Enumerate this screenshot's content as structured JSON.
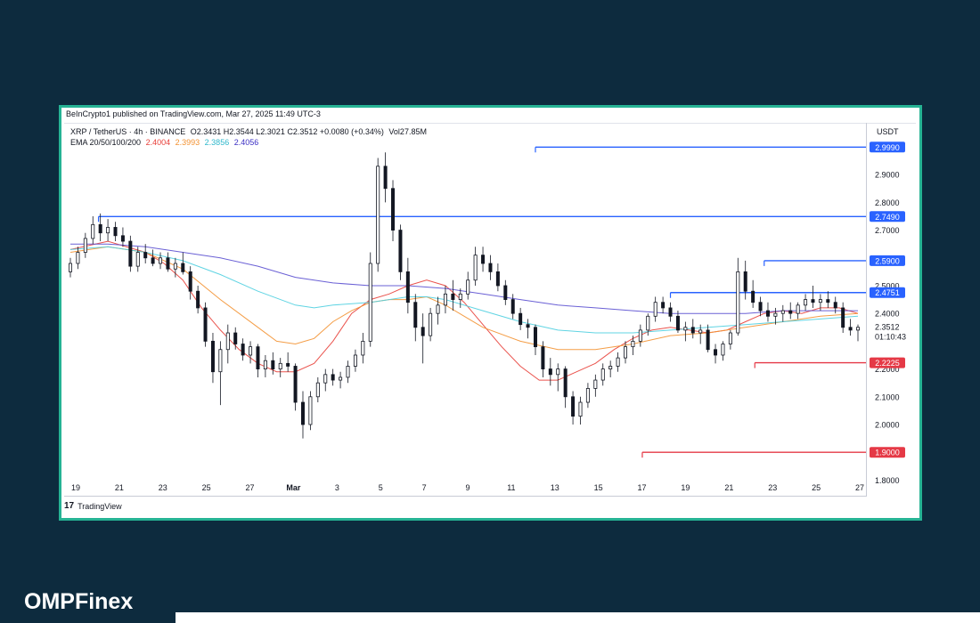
{
  "publisher": "BeInCrypto1 published on TradingView.com, Mar 27, 2025 11:49 UTC-3",
  "legend": {
    "symbol": "XRP / TetherUS · 4h · BINANCE",
    "ohlc": "O2.3431  H2.3544  L2.3021  C2.3512  +0.0080 (+0.34%)",
    "volume": "Vol27.85M",
    "ema_label": "EMA 20/50/100/200",
    "ema_values": [
      "2.4004",
      "2.3993",
      "2.3856",
      "2.4056"
    ]
  },
  "currency": "USDT",
  "footer": {
    "logo": "17",
    "label": "TradingView"
  },
  "brand": "OMPFinex",
  "colors": {
    "ema20": "#e8403a",
    "ema50": "#f39232",
    "ema100": "#4fcfe0",
    "ema200": "#5a4fd0",
    "resistance": "#2962ff",
    "support": "#e53946",
    "candle": "#131722",
    "frame": "#26b394"
  },
  "chart_data": {
    "type": "candlestick",
    "x_tick_labels": [
      "19",
      "21",
      "23",
      "25",
      "27",
      "Mar",
      "3",
      "5",
      "7",
      "9",
      "11",
      "13",
      "15",
      "17",
      "19",
      "21",
      "23",
      "25",
      "27"
    ],
    "y_tick_labels": [
      "2.9000",
      "2.8000",
      "2.7000",
      "2.5000",
      "2.4000",
      "2.2000",
      "2.1000",
      "2.0000",
      "1.8000"
    ],
    "ylim": [
      1.75,
      3.08
    ],
    "current_price": "2.3512",
    "countdown": "01:10:43",
    "resistance_levels": [
      {
        "value": 2.999,
        "label": "2.9990",
        "start_day": 24.8
      },
      {
        "value": 2.749,
        "label": "2.7490",
        "start_day": 1.5
      },
      {
        "value": 2.59,
        "label": "2.5900",
        "start_day": 37.0
      },
      {
        "value": 2.4751,
        "label": "2.4751",
        "start_day": 32.0
      }
    ],
    "support_levels": [
      {
        "value": 2.2225,
        "label": "2.2225",
        "start_day": 36.5
      },
      {
        "value": 1.9,
        "label": "1.9000",
        "start_day": 30.5
      }
    ],
    "series": [
      {
        "name": "EMA 20",
        "color": "#e8403a",
        "points": [
          [
            0,
            2.63
          ],
          [
            2,
            2.66
          ],
          [
            4,
            2.62
          ],
          [
            5,
            2.58
          ],
          [
            6,
            2.52
          ],
          [
            7,
            2.42
          ],
          [
            8,
            2.34
          ],
          [
            9,
            2.27
          ],
          [
            10,
            2.22
          ],
          [
            11,
            2.19
          ],
          [
            12,
            2.19
          ],
          [
            13,
            2.22
          ],
          [
            14,
            2.3
          ],
          [
            15,
            2.4
          ],
          [
            16,
            2.45
          ],
          [
            17,
            2.47
          ],
          [
            18,
            2.5
          ],
          [
            19,
            2.52
          ],
          [
            20,
            2.5
          ],
          [
            21,
            2.44
          ],
          [
            22,
            2.36
          ],
          [
            23,
            2.28
          ],
          [
            24,
            2.21
          ],
          [
            25,
            2.16
          ],
          [
            26,
            2.16
          ],
          [
            27,
            2.19
          ],
          [
            28,
            2.22
          ],
          [
            29,
            2.27
          ],
          [
            30,
            2.31
          ],
          [
            31,
            2.34
          ],
          [
            32,
            2.35
          ],
          [
            33,
            2.34
          ],
          [
            34,
            2.33
          ],
          [
            35,
            2.34
          ],
          [
            36,
            2.37
          ],
          [
            37,
            2.4
          ],
          [
            38,
            2.41
          ],
          [
            39,
            2.4
          ],
          [
            40,
            2.42
          ],
          [
            41,
            2.42
          ],
          [
            42,
            2.4
          ]
        ]
      },
      {
        "name": "EMA 50",
        "color": "#f39232",
        "points": [
          [
            0,
            2.62
          ],
          [
            2,
            2.64
          ],
          [
            4,
            2.62
          ],
          [
            6,
            2.56
          ],
          [
            8,
            2.45
          ],
          [
            10,
            2.35
          ],
          [
            11,
            2.3
          ],
          [
            12,
            2.29
          ],
          [
            13,
            2.31
          ],
          [
            14,
            2.37
          ],
          [
            15,
            2.41
          ],
          [
            16,
            2.44
          ],
          [
            17,
            2.45
          ],
          [
            18,
            2.45
          ],
          [
            19,
            2.46
          ],
          [
            20,
            2.43
          ],
          [
            21,
            2.39
          ],
          [
            22,
            2.35
          ],
          [
            24,
            2.3
          ],
          [
            26,
            2.27
          ],
          [
            28,
            2.27
          ],
          [
            30,
            2.29
          ],
          [
            32,
            2.32
          ],
          [
            34,
            2.33
          ],
          [
            36,
            2.35
          ],
          [
            38,
            2.37
          ],
          [
            40,
            2.39
          ],
          [
            42,
            2.4
          ]
        ]
      },
      {
        "name": "EMA 100",
        "color": "#4fcfe0",
        "points": [
          [
            0,
            2.63
          ],
          [
            2,
            2.64
          ],
          [
            4,
            2.62
          ],
          [
            6,
            2.59
          ],
          [
            8,
            2.54
          ],
          [
            10,
            2.48
          ],
          [
            12,
            2.43
          ],
          [
            13,
            2.42
          ],
          [
            14,
            2.43
          ],
          [
            16,
            2.44
          ],
          [
            18,
            2.46
          ],
          [
            19,
            2.46
          ],
          [
            20,
            2.45
          ],
          [
            22,
            2.41
          ],
          [
            24,
            2.37
          ],
          [
            26,
            2.34
          ],
          [
            28,
            2.33
          ],
          [
            30,
            2.33
          ],
          [
            32,
            2.34
          ],
          [
            34,
            2.35
          ],
          [
            36,
            2.36
          ],
          [
            38,
            2.37
          ],
          [
            40,
            2.38
          ],
          [
            42,
            2.39
          ]
        ]
      },
      {
        "name": "EMA 200",
        "color": "#5a4fd0",
        "points": [
          [
            0,
            2.65
          ],
          [
            2,
            2.65
          ],
          [
            4,
            2.64
          ],
          [
            6,
            2.62
          ],
          [
            8,
            2.6
          ],
          [
            10,
            2.57
          ],
          [
            12,
            2.53
          ],
          [
            14,
            2.51
          ],
          [
            16,
            2.5
          ],
          [
            18,
            2.5
          ],
          [
            20,
            2.49
          ],
          [
            22,
            2.47
          ],
          [
            24,
            2.45
          ],
          [
            26,
            2.43
          ],
          [
            28,
            2.42
          ],
          [
            30,
            2.41
          ],
          [
            32,
            2.4
          ],
          [
            34,
            2.4
          ],
          [
            36,
            2.4
          ],
          [
            38,
            2.41
          ],
          [
            40,
            2.41
          ],
          [
            42,
            2.41
          ]
        ]
      }
    ],
    "candles": [
      [
        0.0,
        2.55,
        2.6,
        2.53,
        2.58
      ],
      [
        0.4,
        2.58,
        2.64,
        2.56,
        2.62
      ],
      [
        0.8,
        2.62,
        2.69,
        2.6,
        2.67
      ],
      [
        1.2,
        2.67,
        2.75,
        2.65,
        2.72
      ],
      [
        1.6,
        2.72,
        2.76,
        2.66,
        2.69
      ],
      [
        2.0,
        2.69,
        2.74,
        2.66,
        2.71
      ],
      [
        2.4,
        2.71,
        2.73,
        2.66,
        2.68
      ],
      [
        2.8,
        2.68,
        2.71,
        2.64,
        2.66
      ],
      [
        3.2,
        2.66,
        2.68,
        2.55,
        2.57
      ],
      [
        3.6,
        2.57,
        2.64,
        2.55,
        2.62
      ],
      [
        4.0,
        2.62,
        2.65,
        2.58,
        2.6
      ],
      [
        4.4,
        2.6,
        2.63,
        2.57,
        2.58
      ],
      [
        4.8,
        2.58,
        2.62,
        2.56,
        2.6
      ],
      [
        5.2,
        2.6,
        2.62,
        2.55,
        2.56
      ],
      [
        5.6,
        2.56,
        2.6,
        2.53,
        2.58
      ],
      [
        6.0,
        2.58,
        2.62,
        2.54,
        2.55
      ],
      [
        6.4,
        2.55,
        2.57,
        2.45,
        2.48
      ],
      [
        6.8,
        2.48,
        2.5,
        2.4,
        2.42
      ],
      [
        7.2,
        2.42,
        2.44,
        2.28,
        2.3
      ],
      [
        7.6,
        2.3,
        2.33,
        2.15,
        2.19
      ],
      [
        8.0,
        2.19,
        2.3,
        2.07,
        2.27
      ],
      [
        8.4,
        2.27,
        2.36,
        2.22,
        2.33
      ],
      [
        8.8,
        2.33,
        2.35,
        2.27,
        2.29
      ],
      [
        9.2,
        2.29,
        2.31,
        2.23,
        2.25
      ],
      [
        9.6,
        2.25,
        2.3,
        2.22,
        2.28
      ],
      [
        10.0,
        2.28,
        2.29,
        2.17,
        2.2
      ],
      [
        10.4,
        2.2,
        2.25,
        2.17,
        2.23
      ],
      [
        10.8,
        2.23,
        2.26,
        2.18,
        2.2
      ],
      [
        11.2,
        2.2,
        2.24,
        2.17,
        2.22
      ],
      [
        11.6,
        2.22,
        2.26,
        2.19,
        2.21
      ],
      [
        12.0,
        2.21,
        2.22,
        2.05,
        2.08
      ],
      [
        12.4,
        2.08,
        2.12,
        1.95,
        2.0
      ],
      [
        12.8,
        2.0,
        2.12,
        1.98,
        2.1
      ],
      [
        13.2,
        2.1,
        2.17,
        2.08,
        2.15
      ],
      [
        13.6,
        2.15,
        2.2,
        2.12,
        2.18
      ],
      [
        14.0,
        2.18,
        2.2,
        2.14,
        2.16
      ],
      [
        14.4,
        2.16,
        2.19,
        2.13,
        2.17
      ],
      [
        14.8,
        2.17,
        2.23,
        2.15,
        2.21
      ],
      [
        15.2,
        2.21,
        2.27,
        2.19,
        2.25
      ],
      [
        15.6,
        2.25,
        2.33,
        2.22,
        2.3
      ],
      [
        16.0,
        2.3,
        2.62,
        2.28,
        2.58
      ],
      [
        16.4,
        2.58,
        2.96,
        2.55,
        2.93
      ],
      [
        16.8,
        2.93,
        2.98,
        2.8,
        2.85
      ],
      [
        17.2,
        2.85,
        2.88,
        2.66,
        2.7
      ],
      [
        17.6,
        2.7,
        2.72,
        2.52,
        2.55
      ],
      [
        18.0,
        2.55,
        2.6,
        2.4,
        2.44
      ],
      [
        18.4,
        2.44,
        2.47,
        2.3,
        2.35
      ],
      [
        18.8,
        2.35,
        2.4,
        2.22,
        2.32
      ],
      [
        19.2,
        2.32,
        2.42,
        2.3,
        2.4
      ],
      [
        19.6,
        2.4,
        2.46,
        2.36,
        2.43
      ],
      [
        20.0,
        2.43,
        2.5,
        2.4,
        2.47
      ],
      [
        20.4,
        2.47,
        2.52,
        2.41,
        2.45
      ],
      [
        20.8,
        2.45,
        2.49,
        2.42,
        2.47
      ],
      [
        21.2,
        2.47,
        2.55,
        2.45,
        2.52
      ],
      [
        21.6,
        2.52,
        2.64,
        2.5,
        2.61
      ],
      [
        22.0,
        2.61,
        2.64,
        2.55,
        2.58
      ],
      [
        22.4,
        2.58,
        2.61,
        2.52,
        2.55
      ],
      [
        22.8,
        2.55,
        2.58,
        2.48,
        2.5
      ],
      [
        23.2,
        2.5,
        2.52,
        2.43,
        2.45
      ],
      [
        23.6,
        2.45,
        2.47,
        2.38,
        2.4
      ],
      [
        24.0,
        2.4,
        2.42,
        2.34,
        2.36
      ],
      [
        24.4,
        2.36,
        2.38,
        2.31,
        2.35
      ],
      [
        24.8,
        2.35,
        2.36,
        2.25,
        2.28
      ],
      [
        25.2,
        2.28,
        2.3,
        2.17,
        2.2
      ],
      [
        25.6,
        2.2,
        2.24,
        2.14,
        2.18
      ],
      [
        26.0,
        2.18,
        2.22,
        2.12,
        2.2
      ],
      [
        26.4,
        2.2,
        2.21,
        2.06,
        2.1
      ],
      [
        26.8,
        2.1,
        2.12,
        2.0,
        2.03
      ],
      [
        27.2,
        2.03,
        2.1,
        2.0,
        2.08
      ],
      [
        27.6,
        2.08,
        2.15,
        2.06,
        2.13
      ],
      [
        28.0,
        2.13,
        2.18,
        2.1,
        2.16
      ],
      [
        28.4,
        2.16,
        2.22,
        2.14,
        2.2
      ],
      [
        28.8,
        2.2,
        2.23,
        2.17,
        2.21
      ],
      [
        29.2,
        2.21,
        2.26,
        2.19,
        2.24
      ],
      [
        29.6,
        2.24,
        2.3,
        2.22,
        2.28
      ],
      [
        30.0,
        2.28,
        2.32,
        2.25,
        2.3
      ],
      [
        30.4,
        2.3,
        2.36,
        2.28,
        2.34
      ],
      [
        30.8,
        2.34,
        2.4,
        2.32,
        2.39
      ],
      [
        31.2,
        2.39,
        2.46,
        2.37,
        2.44
      ],
      [
        31.6,
        2.44,
        2.46,
        2.4,
        2.42
      ],
      [
        32.0,
        2.42,
        2.44,
        2.37,
        2.39
      ],
      [
        32.4,
        2.39,
        2.41,
        2.33,
        2.34
      ],
      [
        32.8,
        2.34,
        2.37,
        2.3,
        2.35
      ],
      [
        33.2,
        2.35,
        2.38,
        2.31,
        2.33
      ],
      [
        33.6,
        2.33,
        2.36,
        2.29,
        2.34
      ],
      [
        34.0,
        2.34,
        2.36,
        2.26,
        2.27
      ],
      [
        34.4,
        2.27,
        2.29,
        2.22,
        2.25
      ],
      [
        34.8,
        2.25,
        2.3,
        2.23,
        2.29
      ],
      [
        35.2,
        2.29,
        2.34,
        2.27,
        2.33
      ],
      [
        35.6,
        2.33,
        2.6,
        2.32,
        2.55
      ],
      [
        36.0,
        2.55,
        2.59,
        2.45,
        2.48
      ],
      [
        36.4,
        2.48,
        2.52,
        2.42,
        2.44
      ],
      [
        36.8,
        2.44,
        2.46,
        2.39,
        2.41
      ],
      [
        37.2,
        2.41,
        2.44,
        2.37,
        2.39
      ],
      [
        37.6,
        2.39,
        2.42,
        2.36,
        2.4
      ],
      [
        38.0,
        2.4,
        2.43,
        2.37,
        2.41
      ],
      [
        38.4,
        2.41,
        2.44,
        2.38,
        2.4
      ],
      [
        38.8,
        2.4,
        2.44,
        2.38,
        2.43
      ],
      [
        39.2,
        2.43,
        2.47,
        2.41,
        2.45
      ],
      [
        39.6,
        2.45,
        2.5,
        2.42,
        2.44
      ],
      [
        40.0,
        2.44,
        2.47,
        2.41,
        2.45
      ],
      [
        40.4,
        2.45,
        2.48,
        2.42,
        2.44
      ],
      [
        40.8,
        2.44,
        2.46,
        2.4,
        2.42
      ],
      [
        41.2,
        2.42,
        2.44,
        2.33,
        2.35
      ],
      [
        41.6,
        2.35,
        2.38,
        2.32,
        2.34
      ],
      [
        42.0,
        2.34,
        2.36,
        2.3,
        2.35
      ]
    ]
  }
}
